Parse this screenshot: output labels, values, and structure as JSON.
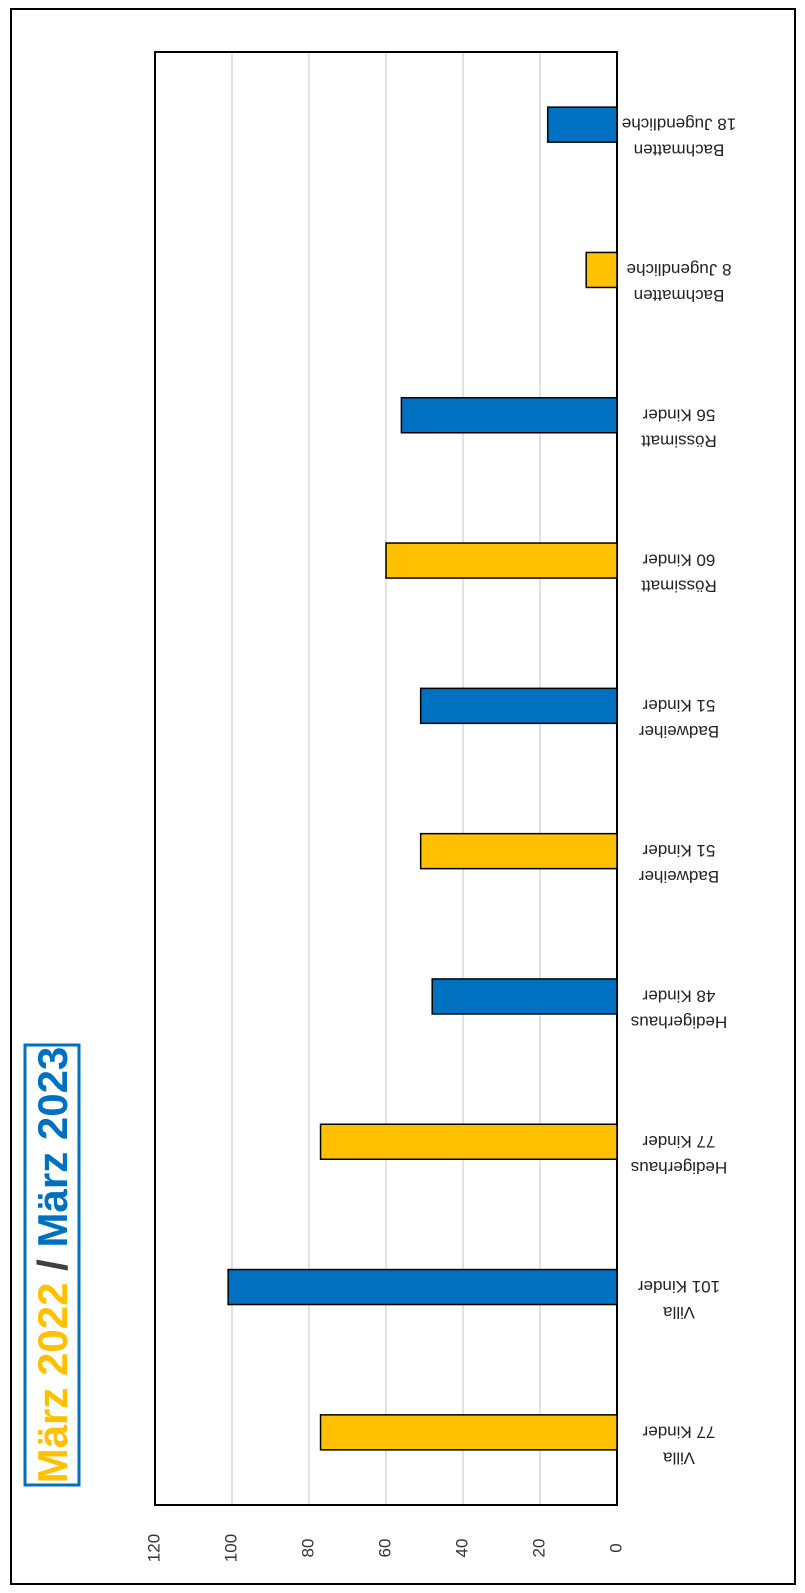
{
  "chart_data": {
    "type": "bar",
    "title_parts": [
      {
        "text": "März 2022",
        "color": "#FFC000"
      },
      {
        "text": " / ",
        "color": "#404040"
      },
      {
        "text": "März 2023",
        "color": "#0070C0"
      }
    ],
    "categories": [
      [
        "Villa",
        "77 Kinder"
      ],
      [
        "Villa",
        "101 Kinder"
      ],
      [
        "Hedigerhaus",
        "77 Kinder"
      ],
      [
        "Hedigerhaus",
        "48 Kinder"
      ],
      [
        "Badweiher",
        "51 Kinder"
      ],
      [
        "Badweiher",
        "51 Kinder"
      ],
      [
        "Rössimatt",
        "60 Kinder"
      ],
      [
        "Rössimatt",
        "56 Kinder"
      ],
      [
        "Bachmatten",
        "8 Jugendliche"
      ],
      [
        "Bachmatten",
        "18 Jugendliche"
      ]
    ],
    "values": [
      77,
      101,
      77,
      48,
      51,
      51,
      60,
      56,
      8,
      18
    ],
    "bar_colors": [
      "#FFC000",
      "#0070C0",
      "#FFC000",
      "#0070C0",
      "#FFC000",
      "#0070C0",
      "#FFC000",
      "#0070C0",
      "#FFC000",
      "#0070C0"
    ],
    "ylim": [
      0,
      120
    ],
    "yticks": [
      0,
      20,
      40,
      60,
      80,
      100,
      120
    ],
    "grid": true,
    "orientation": "rotated-90-clockwise"
  },
  "colors": {
    "grid": "#d9d9d9",
    "axis": "#000000",
    "title_border": "#0070C0"
  }
}
